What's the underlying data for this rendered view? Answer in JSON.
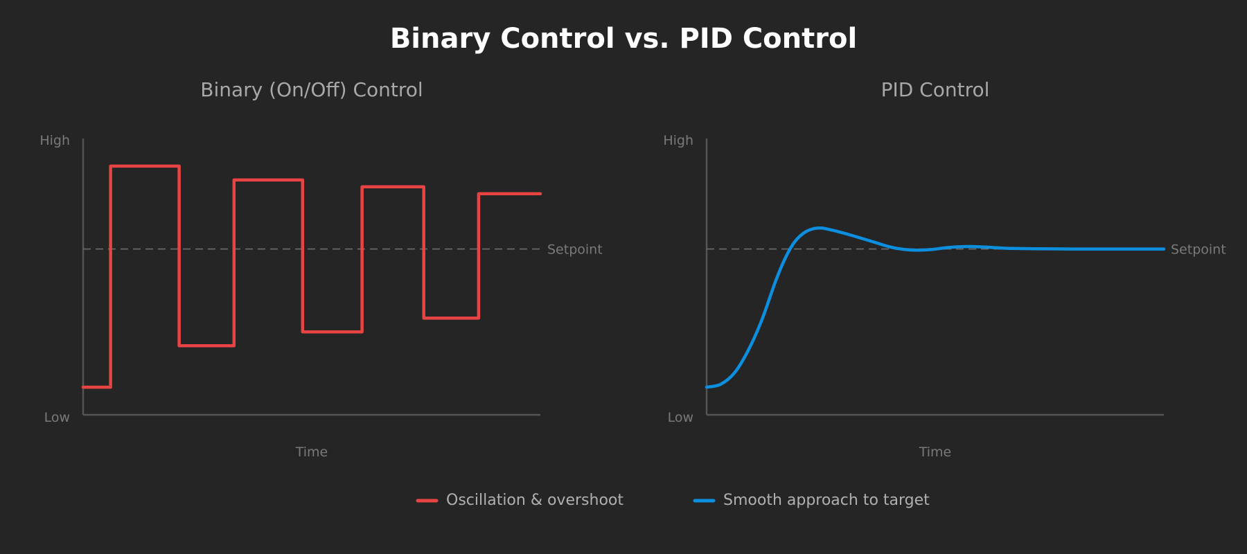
{
  "title": "Binary Control vs. PID Control",
  "colors": {
    "background": "#252525",
    "title": "#ffffff",
    "subtitle": "#a8a8a8",
    "axis": "#555555",
    "label": "#7a7a7a",
    "setpoint_line": "#6e6e6e",
    "binary": "#e84444",
    "pid": "#0d8fe0",
    "legend_text": "#b0b0b0"
  },
  "chart_data": [
    {
      "type": "line",
      "title": "Binary (On/Off) Control",
      "xlabel": "Time",
      "ylabel": "",
      "ytick_labels": {
        "high": "High",
        "low": "Low"
      },
      "xlim": [
        0,
        100
      ],
      "ylim": [
        0,
        100
      ],
      "setpoint": {
        "value": 60,
        "label": "Setpoint"
      },
      "series": [
        {
          "name": "Oscillation & overshoot",
          "color": "#e84444",
          "step": true,
          "x": [
            0,
            6,
            6,
            21,
            21,
            33,
            33,
            48,
            48,
            61,
            61,
            74.5,
            74.5,
            86.5,
            86.5,
            100
          ],
          "y": [
            10,
            10,
            90,
            90,
            25,
            25,
            85,
            85,
            30,
            30,
            82.5,
            82.5,
            35,
            35,
            80,
            80
          ]
        }
      ]
    },
    {
      "type": "line",
      "title": "PID Control",
      "xlabel": "Time",
      "ylabel": "",
      "ytick_labels": {
        "high": "High",
        "low": "Low"
      },
      "xlim": [
        0,
        100
      ],
      "ylim": [
        0,
        100
      ],
      "setpoint": {
        "value": 60,
        "label": "Setpoint"
      },
      "series": [
        {
          "name": "Smooth approach to target",
          "color": "#0d8fe0",
          "step": false,
          "x": [
            0,
            3,
            6,
            9,
            12,
            15,
            17,
            19,
            21,
            23,
            25,
            27,
            29,
            31,
            34,
            37,
            40,
            43,
            46,
            49,
            52,
            55,
            58,
            61,
            64,
            67,
            72,
            80,
            90,
            100
          ],
          "y": [
            10,
            11,
            15,
            23,
            34,
            48,
            56,
            62,
            65.5,
            67.2,
            67.6,
            67,
            66.2,
            65.3,
            63.8,
            62.3,
            60.8,
            59.9,
            59.6,
            59.8,
            60.4,
            60.8,
            60.9,
            60.7,
            60.4,
            60.2,
            60.1,
            60,
            60,
            60
          ]
        }
      ]
    }
  ],
  "legend": [
    {
      "label": "Oscillation & overshoot",
      "color": "#e84444"
    },
    {
      "label": "Smooth approach to target",
      "color": "#0d8fe0"
    }
  ]
}
